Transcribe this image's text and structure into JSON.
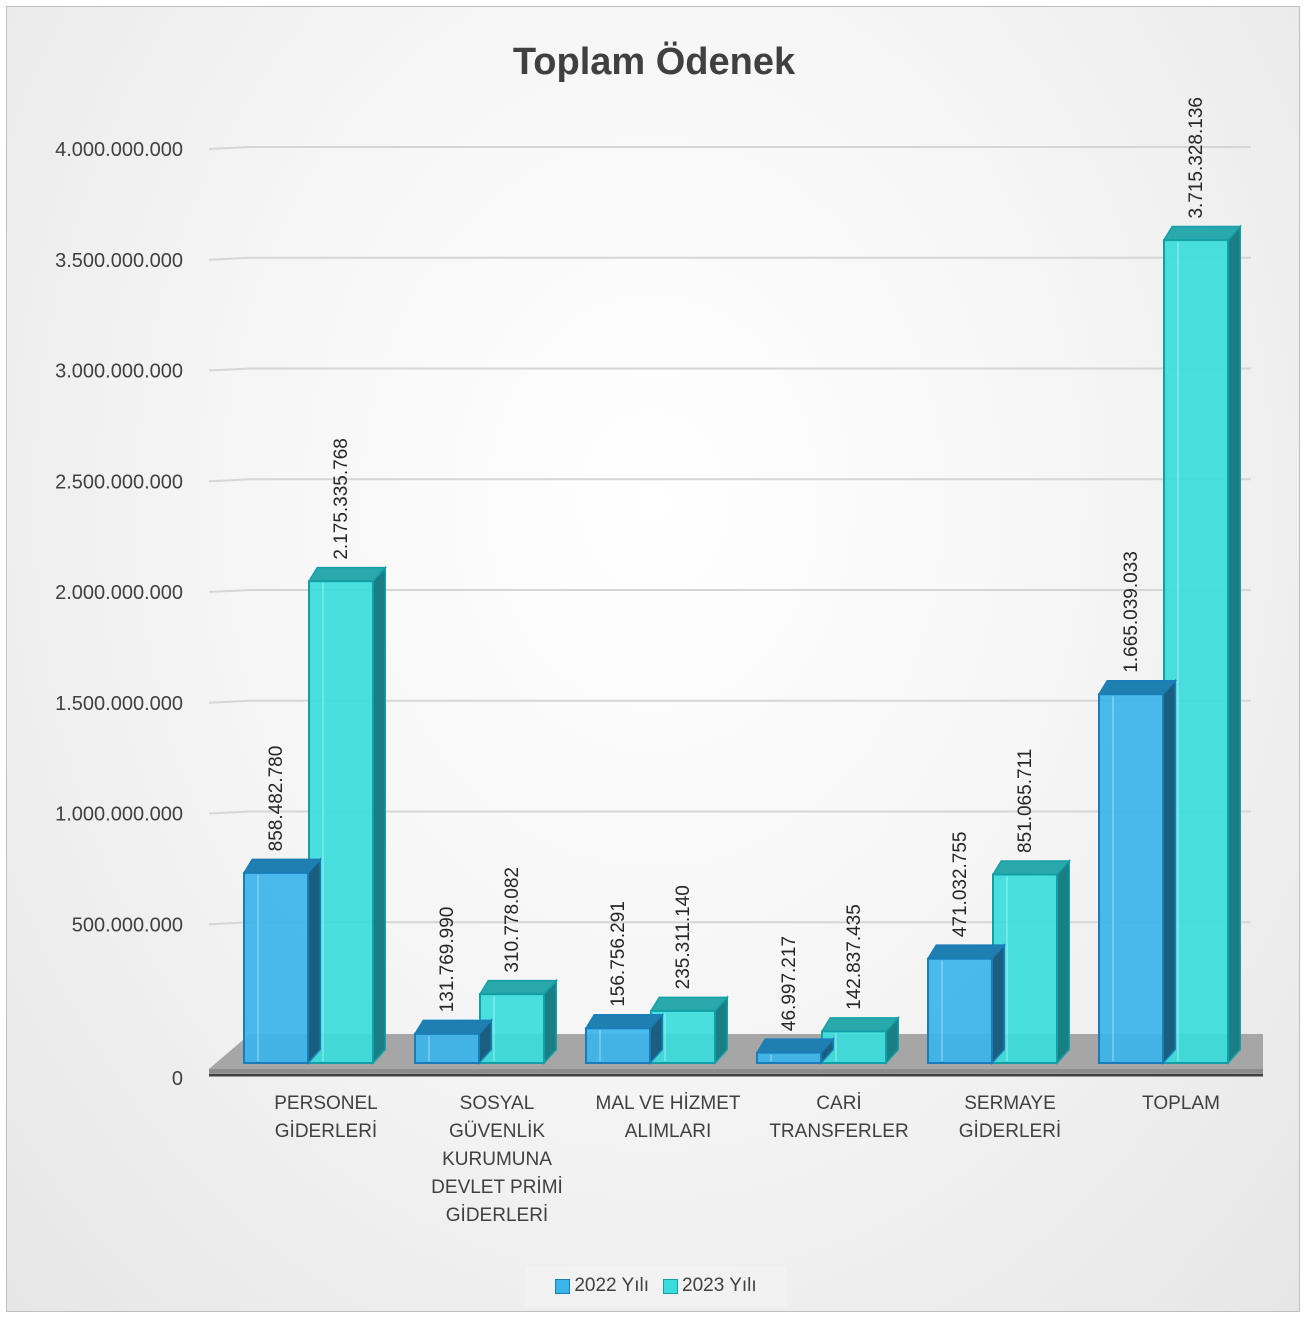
{
  "chart_data": {
    "type": "bar",
    "title": "Toplam Ödenek",
    "categories": [
      [
        "PERSONEL",
        "GİDERLERİ"
      ],
      [
        "SOSYAL",
        "GÜVENLİK",
        "KURUMUNA",
        "DEVLET PRİMİ",
        "GİDERLERİ"
      ],
      [
        "MAL VE HİZMET",
        "ALIMLARI"
      ],
      [
        "CARİ",
        "TRANSFERLER"
      ],
      [
        "SERMAYE",
        "GİDERLERİ"
      ],
      [
        "TOPLAM"
      ]
    ],
    "series": [
      {
        "name": "2022 Yılı",
        "color": "#3bb4ea",
        "values": [
          858482780,
          131769990,
          156756291,
          46997217,
          471032755,
          1665039033
        ],
        "labels": [
          "858.482.780",
          "131.769.990",
          "156.756.291",
          "46.997.217",
          "471.032.755",
          "1.665.039.033"
        ]
      },
      {
        "name": "2023 Yılı",
        "color": "#39dcdc",
        "values": [
          2175335768,
          310778082,
          235311140,
          142837435,
          851065711,
          3715328136
        ],
        "labels": [
          "2.175.335.768",
          "310.778.082",
          "235.311.140",
          "142.837.435",
          "851.065.711",
          "3.715.328.136"
        ]
      }
    ],
    "yticks": [
      {
        "value": 0,
        "label": "0"
      },
      {
        "value": 500000000,
        "label": "500.000.000"
      },
      {
        "value": 1000000000,
        "label": "1.000.000.000"
      },
      {
        "value": 1500000000,
        "label": "1.500.000.000"
      },
      {
        "value": 2000000000,
        "label": "2.000.000.000"
      },
      {
        "value": 2500000000,
        "label": "2.500.000.000"
      },
      {
        "value": 3000000000,
        "label": "3.000.000.000"
      },
      {
        "value": 3500000000,
        "label": "3.500.000.000"
      },
      {
        "value": 4000000000,
        "label": "4.000.000.000"
      }
    ],
    "ylim": [
      0,
      4000000000
    ],
    "grid": true,
    "legend": "bottom"
  }
}
